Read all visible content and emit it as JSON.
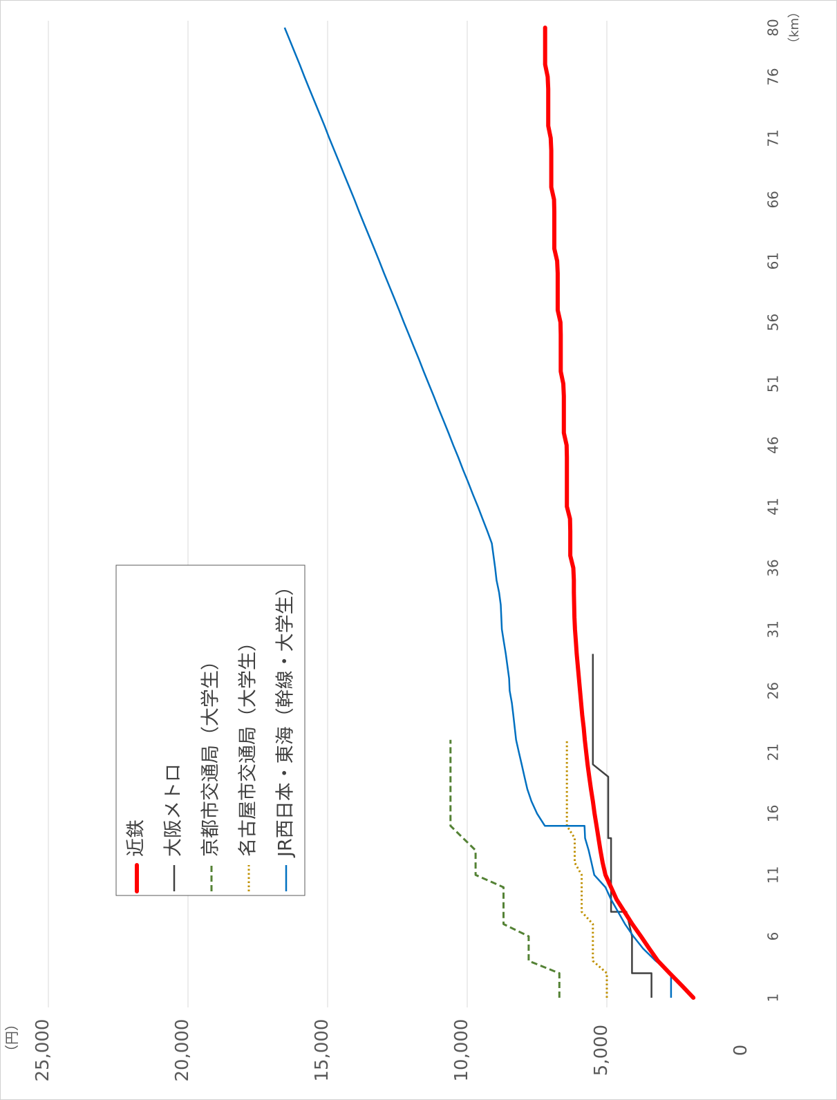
{
  "chart_data": {
    "type": "line",
    "orientation": "rotated-90-clockwise",
    "y_unit_label": "（円）",
    "x_unit_label": "（km）",
    "ylim": [
      0,
      25000
    ],
    "yticks": [
      0,
      5000,
      10000,
      15000,
      20000,
      25000
    ],
    "ytick_labels": [
      "0",
      "5,000",
      "10,000",
      "15,000",
      "20,000",
      "25,000"
    ],
    "xlim": [
      1,
      80
    ],
    "xticks": [
      1,
      6,
      11,
      16,
      21,
      26,
      31,
      36,
      41,
      46,
      51,
      56,
      61,
      66,
      71,
      76,
      80
    ],
    "xtick_labels": [
      "1",
      "6",
      "11",
      "16",
      "21",
      "26",
      "31",
      "36",
      "41",
      "46",
      "51",
      "56",
      "61",
      "66",
      "71",
      "76",
      "80"
    ],
    "grid": true,
    "legend_position": "upper-center",
    "series": [
      {
        "name": "近鉄",
        "color": "#ff0000",
        "style": "solid-thick",
        "points": [
          [
            1,
            1900
          ],
          [
            2,
            2320
          ],
          [
            3,
            2750
          ],
          [
            4,
            3170
          ],
          [
            5,
            3480
          ],
          [
            6,
            3780
          ],
          [
            7,
            4090
          ],
          [
            8,
            4370
          ],
          [
            9,
            4650
          ],
          [
            10,
            4850
          ],
          [
            11,
            5050
          ],
          [
            12,
            5150
          ],
          [
            13,
            5230
          ],
          [
            14,
            5300
          ],
          [
            15,
            5370
          ],
          [
            16,
            5440
          ],
          [
            17,
            5500
          ],
          [
            18,
            5570
          ],
          [
            19,
            5630
          ],
          [
            20,
            5690
          ],
          [
            21,
            5740
          ],
          [
            22,
            5790
          ],
          [
            23,
            5830
          ],
          [
            24,
            5880
          ],
          [
            25,
            5920
          ],
          [
            26,
            5960
          ],
          [
            27,
            6000
          ],
          [
            28,
            6040
          ],
          [
            29,
            6080
          ],
          [
            30,
            6110
          ],
          [
            31,
            6140
          ],
          [
            32,
            6160
          ],
          [
            33,
            6170
          ],
          [
            34,
            6180
          ],
          [
            35,
            6180
          ],
          [
            36,
            6200
          ],
          [
            37,
            6310
          ],
          [
            38,
            6310
          ],
          [
            39,
            6310
          ],
          [
            40,
            6320
          ],
          [
            41,
            6430
          ],
          [
            42,
            6430
          ],
          [
            43,
            6430
          ],
          [
            44,
            6430
          ],
          [
            45,
            6430
          ],
          [
            46,
            6440
          ],
          [
            47,
            6540
          ],
          [
            48,
            6540
          ],
          [
            49,
            6540
          ],
          [
            50,
            6540
          ],
          [
            51,
            6560
          ],
          [
            52,
            6650
          ],
          [
            53,
            6650
          ],
          [
            54,
            6650
          ],
          [
            55,
            6650
          ],
          [
            56,
            6660
          ],
          [
            57,
            6760
          ],
          [
            58,
            6760
          ],
          [
            59,
            6760
          ],
          [
            60,
            6760
          ],
          [
            61,
            6780
          ],
          [
            62,
            6880
          ],
          [
            63,
            6880
          ],
          [
            64,
            6880
          ],
          [
            65,
            6880
          ],
          [
            66,
            6890
          ],
          [
            67,
            6990
          ],
          [
            68,
            6990
          ],
          [
            69,
            6990
          ],
          [
            70,
            6990
          ],
          [
            71,
            7010
          ],
          [
            72,
            7100
          ],
          [
            73,
            7100
          ],
          [
            74,
            7100
          ],
          [
            75,
            7100
          ],
          [
            76,
            7120
          ],
          [
            77,
            7210
          ],
          [
            78,
            7210
          ],
          [
            79,
            7210
          ],
          [
            80,
            7210
          ]
        ]
      },
      {
        "name": "大阪メトロ",
        "color": "#404040",
        "style": "solid-thin",
        "points": [
          [
            1,
            3400
          ],
          [
            3,
            3400
          ],
          [
            3,
            4100
          ],
          [
            6,
            4100
          ],
          [
            6,
            4100
          ],
          [
            8,
            4300
          ],
          [
            8,
            4850
          ],
          [
            14,
            4850
          ],
          [
            14,
            4950
          ],
          [
            19,
            4950
          ],
          [
            20,
            5500
          ],
          [
            29,
            5500
          ]
        ]
      },
      {
        "name": "京都市交通局（大学生）",
        "color": "#548235",
        "style": "dashed",
        "points": [
          [
            1,
            6700
          ],
          [
            3,
            6700
          ],
          [
            4,
            7800
          ],
          [
            6,
            7800
          ],
          [
            7,
            8700
          ],
          [
            10,
            8700
          ],
          [
            11,
            9700
          ],
          [
            13,
            9700
          ],
          [
            15,
            10600
          ],
          [
            22,
            10600
          ]
        ]
      },
      {
        "name": "名古屋市交通局（大学生）",
        "color": "#bf9000",
        "style": "dotted",
        "points": [
          [
            1,
            5000
          ],
          [
            3,
            5000
          ],
          [
            4,
            5500
          ],
          [
            7,
            5500
          ],
          [
            8,
            5900
          ],
          [
            11,
            5900
          ],
          [
            12,
            6150
          ],
          [
            14,
            6150
          ],
          [
            15,
            6430
          ],
          [
            22,
            6430
          ]
        ]
      },
      {
        "name": "JR西日本・東海（幹線・大学生）",
        "color": "#0070c0",
        "style": "solid-thin",
        "points": [
          [
            1,
            2700
          ],
          [
            3,
            2700
          ],
          [
            4,
            3250
          ],
          [
            5,
            3700
          ],
          [
            6,
            4050
          ],
          [
            7,
            4350
          ],
          [
            8,
            4600
          ],
          [
            9,
            4850
          ],
          [
            10,
            5050
          ],
          [
            11,
            5450
          ],
          [
            12,
            5550
          ],
          [
            13,
            5650
          ],
          [
            14,
            5780
          ],
          [
            15,
            5800
          ],
          [
            15,
            7220
          ],
          [
            16,
            7500
          ],
          [
            17,
            7700
          ],
          [
            18,
            7850
          ],
          [
            19,
            7950
          ],
          [
            20,
            8050
          ],
          [
            21,
            8150
          ],
          [
            22,
            8250
          ],
          [
            23,
            8300
          ],
          [
            24,
            8350
          ],
          [
            25,
            8400
          ],
          [
            26,
            8480
          ],
          [
            27,
            8500
          ],
          [
            28,
            8560
          ],
          [
            29,
            8620
          ],
          [
            30,
            8690
          ],
          [
            31,
            8760
          ],
          [
            32,
            8780
          ],
          [
            33,
            8800
          ],
          [
            34,
            8860
          ],
          [
            35,
            8950
          ],
          [
            36,
            9000
          ],
          [
            37,
            9060
          ],
          [
            38,
            9120
          ],
          [
            39,
            9280
          ],
          [
            40,
            9450
          ],
          [
            41,
            9620
          ],
          [
            42,
            9800
          ],
          [
            43,
            9970
          ],
          [
            44,
            10150
          ],
          [
            45,
            10320
          ],
          [
            46,
            10500
          ],
          [
            47,
            10670
          ],
          [
            48,
            10850
          ],
          [
            49,
            11030
          ],
          [
            50,
            11200
          ],
          [
            51,
            11380
          ],
          [
            52,
            11560
          ],
          [
            53,
            11730
          ],
          [
            54,
            11910
          ],
          [
            55,
            12090
          ],
          [
            56,
            12270
          ],
          [
            57,
            12440
          ],
          [
            58,
            12620
          ],
          [
            59,
            12800
          ],
          [
            60,
            12980
          ],
          [
            61,
            13150
          ],
          [
            62,
            13330
          ],
          [
            63,
            13510
          ],
          [
            64,
            13690
          ],
          [
            65,
            13870
          ],
          [
            66,
            14040
          ],
          [
            67,
            14220
          ],
          [
            68,
            14400
          ],
          [
            69,
            14580
          ],
          [
            70,
            14760
          ],
          [
            71,
            14940
          ],
          [
            72,
            15110
          ],
          [
            73,
            15290
          ],
          [
            74,
            15470
          ],
          [
            75,
            15650
          ],
          [
            76,
            15830
          ],
          [
            77,
            16000
          ],
          [
            78,
            16180
          ],
          [
            79,
            16360
          ],
          [
            80,
            16540
          ]
        ]
      }
    ]
  }
}
